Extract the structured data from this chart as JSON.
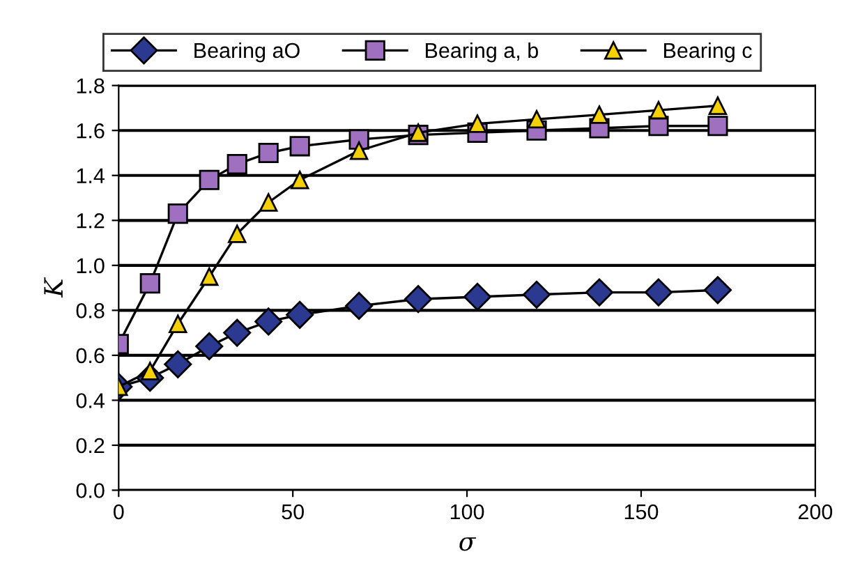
{
  "chart_data": {
    "type": "line",
    "xlabel": "σ",
    "ylabel": "K",
    "xlim": [
      0,
      200
    ],
    "xticks": [
      0,
      50,
      100,
      150,
      200
    ],
    "ylim": [
      0.0,
      1.8
    ],
    "yticks": [
      {
        "value": 0,
        "label": "0.0"
      },
      0.2,
      0.4,
      0.6,
      0.8,
      {
        "value": 1,
        "label": "1.0"
      },
      1.2,
      1.4,
      1.6,
      1.8
    ],
    "grid": "y",
    "legend": "top",
    "series": [
      {
        "name": "Bearing aO",
        "color": "#2b3990",
        "marker": "diamond",
        "x": [
          0,
          9,
          17,
          26,
          34,
          43,
          52,
          69,
          86,
          103,
          120,
          138,
          155,
          172
        ],
        "values": [
          0.46,
          0.5,
          0.56,
          0.64,
          0.7,
          0.75,
          0.78,
          0.82,
          0.85,
          0.86,
          0.87,
          0.88,
          0.88,
          0.89
        ]
      },
      {
        "name": "Bearing a, b",
        "color": "#a070c0",
        "marker": "square",
        "x": [
          0,
          9,
          17,
          26,
          34,
          43,
          52,
          69,
          86,
          103,
          120,
          138,
          155,
          172
        ],
        "values": [
          0.65,
          0.92,
          1.23,
          1.38,
          1.45,
          1.5,
          1.53,
          1.56,
          1.58,
          1.59,
          1.6,
          1.61,
          1.62,
          1.62
        ]
      },
      {
        "name": "Bearing c",
        "color": "#f5d000",
        "marker": "triangle",
        "x": [
          0,
          9,
          17,
          26,
          34,
          43,
          52,
          69,
          86,
          103,
          120,
          138,
          155,
          172
        ],
        "values": [
          0.46,
          0.53,
          0.74,
          0.95,
          1.14,
          1.28,
          1.38,
          1.51,
          1.59,
          1.63,
          1.65,
          1.67,
          1.69,
          1.71
        ]
      }
    ]
  }
}
